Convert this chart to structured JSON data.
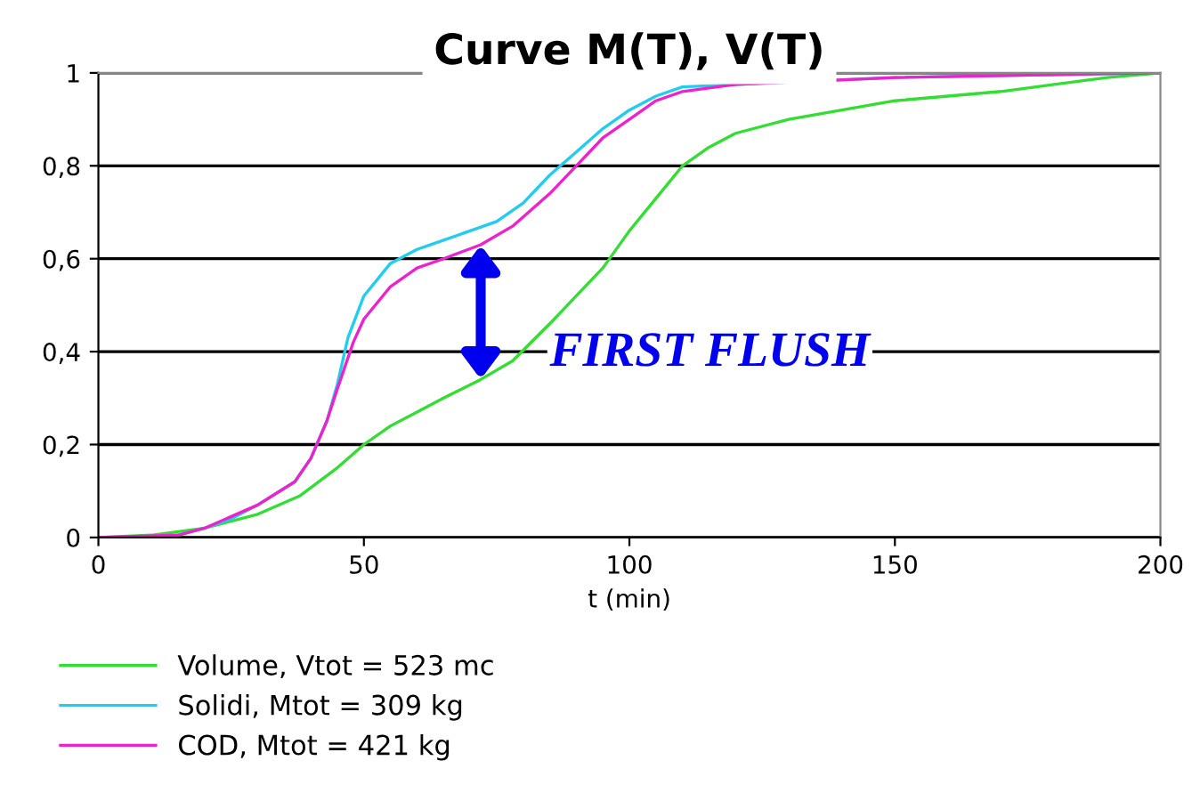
{
  "chart_data": {
    "type": "line",
    "title": "Curve M(T), V(T)",
    "xlabel": "t (min)",
    "xlim": [
      0,
      200
    ],
    "xticks": [
      0,
      50,
      100,
      150,
      200
    ],
    "ylim": [
      0,
      1
    ],
    "yticks": [
      0,
      {
        "value": 0.2,
        "label": "0,2"
      },
      {
        "value": 0.4,
        "label": "0,4"
      },
      {
        "value": 0.6,
        "label": "0,6"
      },
      {
        "value": 0.8,
        "label": "0,8"
      },
      1
    ],
    "grid": "y",
    "legend": "bottom left",
    "marker": "none",
    "line_style": "solid",
    "series": [
      {
        "name": "Volume, Vtot = 523 mc",
        "color": "#33dd33",
        "x": [
          0,
          10,
          20,
          30,
          38,
          45,
          50,
          55,
          60,
          65,
          72,
          78,
          85,
          90,
          95,
          100,
          105,
          110,
          115,
          120,
          130,
          140,
          150,
          160,
          170,
          180,
          190,
          200
        ],
        "values": [
          0,
          0.005,
          0.02,
          0.05,
          0.09,
          0.15,
          0.2,
          0.24,
          0.27,
          0.3,
          0.34,
          0.38,
          0.46,
          0.52,
          0.58,
          0.66,
          0.73,
          0.8,
          0.84,
          0.87,
          0.9,
          0.92,
          0.94,
          0.95,
          0.96,
          0.975,
          0.99,
          1
        ]
      },
      {
        "name": "Solidi, Mtot = 309 kg",
        "color": "#22ccee",
        "x": [
          15,
          20,
          25,
          30,
          37,
          40,
          43,
          45,
          47,
          50,
          55,
          60,
          65,
          70,
          75,
          80,
          85,
          90,
          95,
          100,
          105,
          110,
          150,
          200
        ],
        "values": [
          0.005,
          0.02,
          0.04,
          0.07,
          0.12,
          0.17,
          0.25,
          0.33,
          0.43,
          0.52,
          0.59,
          0.62,
          0.64,
          0.66,
          0.68,
          0.72,
          0.78,
          0.83,
          0.88,
          0.92,
          0.95,
          0.97,
          0.99,
          1
        ]
      },
      {
        "name": "COD, Mtot = 421 kg",
        "color": "#ee22cc",
        "x": [
          0,
          15,
          20,
          30,
          37,
          40,
          43,
          45,
          48,
          50,
          55,
          60,
          65,
          72,
          78,
          85,
          90,
          95,
          100,
          105,
          110,
          120,
          150,
          200
        ],
        "values": [
          0,
          0.005,
          0.02,
          0.07,
          0.12,
          0.17,
          0.25,
          0.32,
          0.42,
          0.47,
          0.54,
          0.58,
          0.6,
          0.63,
          0.67,
          0.74,
          0.8,
          0.86,
          0.9,
          0.94,
          0.96,
          0.975,
          0.99,
          1
        ]
      }
    ],
    "annotations": [
      "FIRST FLUSH"
    ]
  }
}
